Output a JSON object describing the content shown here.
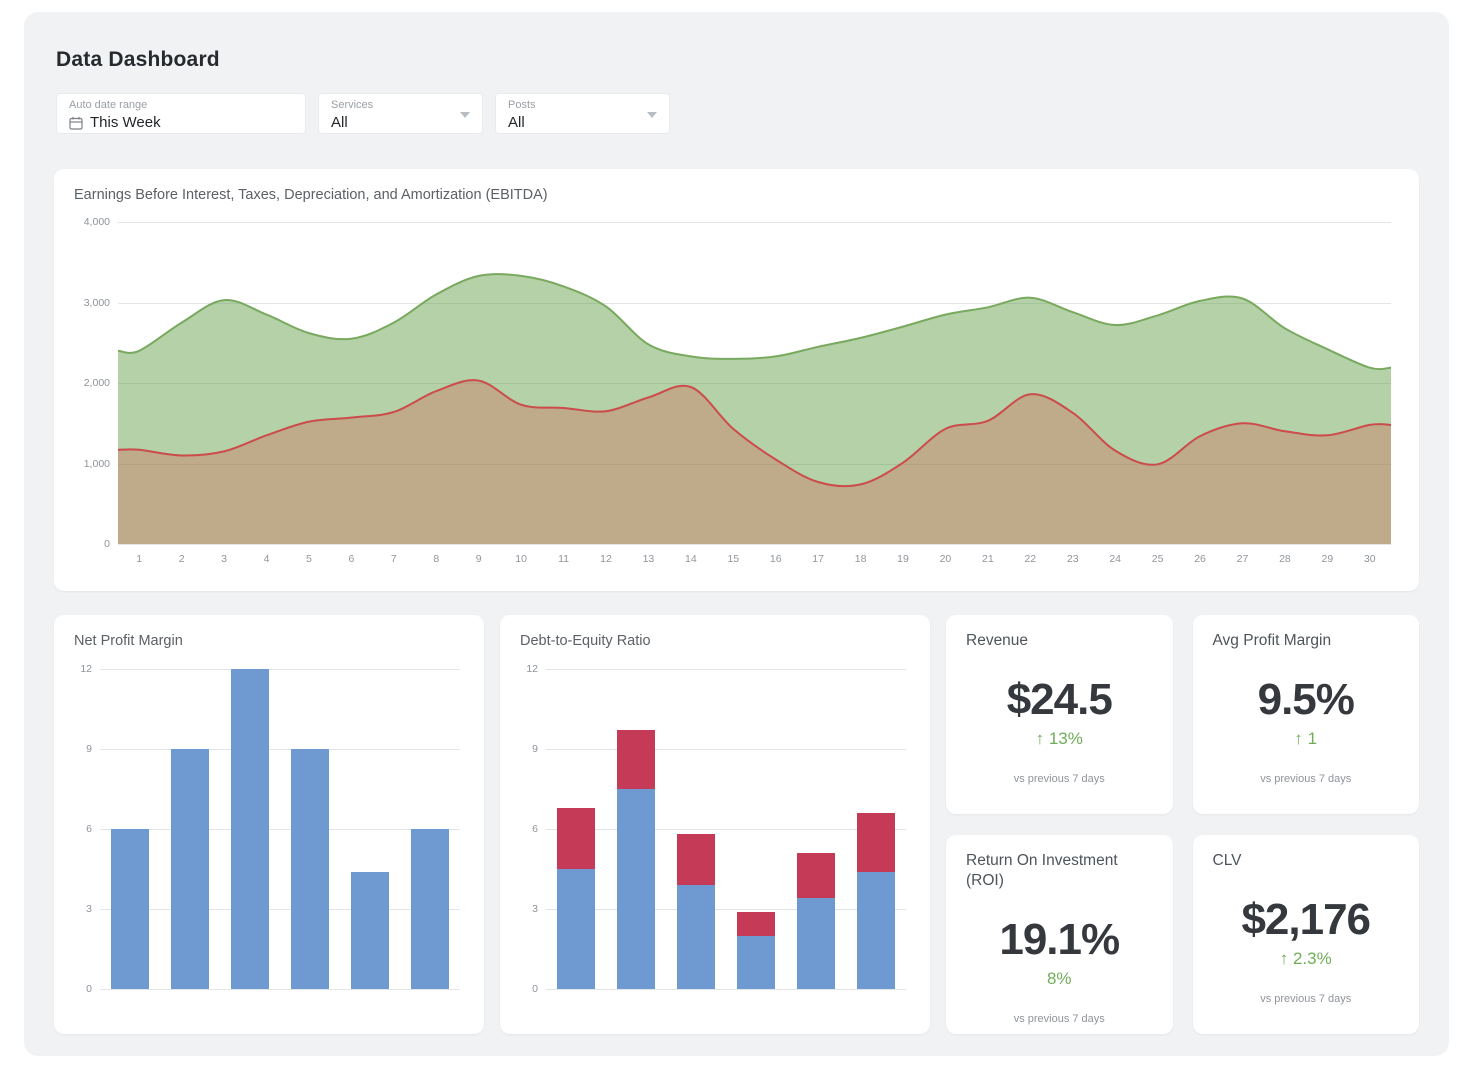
{
  "header": {
    "title": "Data Dashboard"
  },
  "filters": [
    {
      "label": "Auto date range",
      "value": "This Week",
      "icon": "calendar-icon"
    },
    {
      "label": "Services",
      "value": "All",
      "icon": "chevron-down-icon"
    },
    {
      "label": "Posts",
      "value": "All",
      "icon": "chevron-down-icon"
    }
  ],
  "chart_data": [
    {
      "type": "area",
      "title": "Earnings Before Interest, Taxes, Depreciation, and Amortization (EBITDA)",
      "x": [
        "1",
        "2",
        "3",
        "4",
        "5",
        "6",
        "7",
        "8",
        "9",
        "10",
        "11",
        "12",
        "13",
        "14",
        "15",
        "16",
        "17",
        "18",
        "19",
        "20",
        "21",
        "22",
        "23",
        "24",
        "25",
        "26",
        "27",
        "28",
        "29",
        "30"
      ],
      "series": [
        {
          "name": "upper-green",
          "color": "#79a95f",
          "fill": "rgba(106,163,80,0.5)",
          "values": [
            2400,
            2750,
            3030,
            2850,
            2620,
            2550,
            2750,
            3100,
            3330,
            3330,
            3200,
            2950,
            2480,
            2330,
            2300,
            2330,
            2450,
            2560,
            2700,
            2850,
            2940,
            3060,
            2880,
            2720,
            2840,
            3020,
            3050,
            2680,
            2420,
            2190
          ]
        },
        {
          "name": "lower-red",
          "color": "#cc4b4b",
          "fill": "rgba(214,88,78,0.32)",
          "values": [
            1170,
            1100,
            1150,
            1350,
            1520,
            1570,
            1640,
            1900,
            2030,
            1730,
            1690,
            1650,
            1820,
            1950,
            1430,
            1050,
            770,
            740,
            1010,
            1430,
            1530,
            1860,
            1630,
            1160,
            990,
            1340,
            1500,
            1400,
            1350,
            1480
          ]
        }
      ],
      "ylim": [
        0,
        4000
      ],
      "yticks": [
        {
          "v": 4000,
          "label": "4,000"
        },
        {
          "v": 3000,
          "label": "3,000"
        },
        {
          "v": 2000,
          "label": "2,000"
        },
        {
          "v": 1000,
          "label": "1,000"
        },
        {
          "v": 0,
          "label": "0"
        }
      ],
      "grid": true,
      "legend": "none"
    },
    {
      "type": "bar",
      "title": "Net Profit Margin",
      "series": [
        {
          "name": "net-profit-margin",
          "color": "#6e9ad1",
          "values": [
            6,
            9,
            12,
            9,
            4.4,
            6
          ]
        }
      ],
      "ylim": [
        0,
        12
      ],
      "yticks": [
        {
          "v": 12,
          "label": "12"
        },
        {
          "v": 9,
          "label": "9"
        },
        {
          "v": 6,
          "label": "6"
        },
        {
          "v": 3,
          "label": "3"
        },
        {
          "v": 0,
          "label": "0"
        }
      ],
      "grid": true,
      "legend": "none"
    },
    {
      "type": "stacked-bar",
      "title": "Debt-to-Equity Ratio",
      "series": [
        {
          "name": "stack-bottom-blue",
          "color": "#6e9ad1",
          "values": [
            4.5,
            7.5,
            3.9,
            2.0,
            3.4,
            4.4
          ]
        },
        {
          "name": "stack-top-red",
          "color": "#c43a57",
          "values": [
            2.3,
            2.2,
            1.9,
            0.9,
            1.7,
            2.2
          ]
        }
      ],
      "ylim": [
        0,
        12
      ],
      "yticks": [
        {
          "v": 12,
          "label": "12"
        },
        {
          "v": 9,
          "label": "9"
        },
        {
          "v": 6,
          "label": "6"
        },
        {
          "v": 3,
          "label": "3"
        },
        {
          "v": 0,
          "label": "0"
        }
      ],
      "grid": true,
      "legend": "none"
    }
  ],
  "kpis": [
    {
      "label": "Revenue",
      "value": "$24.5",
      "delta": "↑ 13%",
      "note": "vs previous 7 days"
    },
    {
      "label": "Avg Profit Margin",
      "value": "9.5%",
      "delta": "↑ 1",
      "note": "vs previous 7 days"
    },
    {
      "label": "Return On Investment (ROI)",
      "value": "19.1%",
      "delta": "8%",
      "note": "vs previous 7 days"
    },
    {
      "label": "CLV",
      "value": "$2,176",
      "delta": "↑ 2.3%",
      "note": "vs previous 7 days"
    }
  ],
  "colors": {
    "panel_bg": "#f1f2f4",
    "card_bg": "#ffffff",
    "delta_green": "#6fae57",
    "bar_blue": "#6e9ad1",
    "bar_red": "#c43a57",
    "area_green_line": "#79a95f",
    "area_red_line": "#cc4b4b",
    "gridline": "#e2e5e8",
    "tick_text": "#8e939a"
  }
}
